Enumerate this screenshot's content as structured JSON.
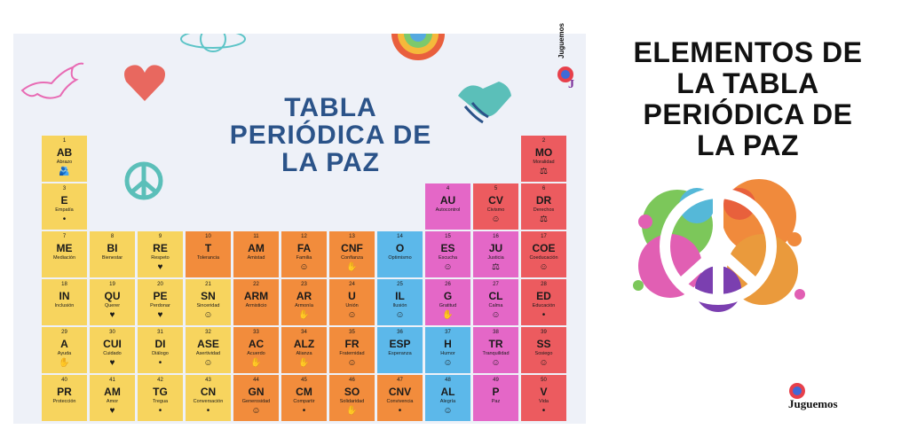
{
  "main_title": [
    "TABLA",
    "PERIÓDICA DE",
    "LA PAZ"
  ],
  "side_title": [
    "ELEMENTOS DE",
    "LA TABLA",
    "PERIÓDICA DE",
    "LA PAZ"
  ],
  "brand": "Juguemos",
  "colors": {
    "yellow": "#f7d45e",
    "orange": "#f28c3c",
    "blue": "#5cb8ea",
    "pink": "#e467c7",
    "red": "#ec5b5f",
    "title_blue": "#2b5389"
  },
  "elements": [
    {
      "num": "1",
      "sym": "AB",
      "name": "Abrazo",
      "color": "yellow",
      "icon": "hug-icon",
      "glyph": "🫂",
      "col": 0,
      "row": 0
    },
    {
      "num": "2",
      "sym": "MO",
      "name": "Moralidad",
      "color": "red",
      "icon": "scales-icon",
      "glyph": "⚖",
      "col": 10,
      "row": 0
    },
    {
      "num": "3",
      "sym": "E",
      "name": "Empatía",
      "color": "yellow",
      "icon": "hands-icon",
      "glyph": "",
      "col": 0,
      "row": 1
    },
    {
      "num": "4",
      "sym": "AU",
      "name": "Autocontrol",
      "color": "pink",
      "icon": "none",
      "glyph": "",
      "col": 8,
      "row": 1
    },
    {
      "num": "5",
      "sym": "CV",
      "name": "Civismo",
      "color": "red",
      "icon": "people-icon",
      "glyph": "☺",
      "col": 9,
      "row": 1
    },
    {
      "num": "6",
      "sym": "DR",
      "name": "Derechos",
      "color": "red",
      "icon": "scales-icon",
      "glyph": "⚖",
      "col": 10,
      "row": 1
    },
    {
      "num": "7",
      "sym": "ME",
      "name": "Mediación",
      "color": "yellow",
      "icon": "none",
      "glyph": "",
      "col": 0,
      "row": 2
    },
    {
      "num": "8",
      "sym": "BI",
      "name": "Bienestar",
      "color": "yellow",
      "icon": "none",
      "glyph": "",
      "col": 1,
      "row": 2
    },
    {
      "num": "9",
      "sym": "RE",
      "name": "Respeto",
      "color": "yellow",
      "icon": "heart-icon",
      "glyph": "♥",
      "col": 2,
      "row": 2
    },
    {
      "num": "10",
      "sym": "T",
      "name": "Tolerancia",
      "color": "orange",
      "icon": "none",
      "glyph": "",
      "col": 3,
      "row": 2
    },
    {
      "num": "11",
      "sym": "AM",
      "name": "Amistad",
      "color": "orange",
      "icon": "none",
      "glyph": "",
      "col": 4,
      "row": 2
    },
    {
      "num": "12",
      "sym": "FA",
      "name": "Familia",
      "color": "orange",
      "icon": "family-icon",
      "glyph": "☺",
      "col": 5,
      "row": 2
    },
    {
      "num": "13",
      "sym": "CNF",
      "name": "Confianza",
      "color": "orange",
      "icon": "handshake-icon",
      "glyph": "✋",
      "col": 6,
      "row": 2
    },
    {
      "num": "14",
      "sym": "O",
      "name": "Optimismo",
      "color": "blue",
      "icon": "none",
      "glyph": "",
      "col": 7,
      "row": 2
    },
    {
      "num": "15",
      "sym": "ES",
      "name": "Escucha",
      "color": "pink",
      "icon": "ear-icon",
      "glyph": "☺",
      "col": 8,
      "row": 2
    },
    {
      "num": "16",
      "sym": "JU",
      "name": "Justicia",
      "color": "pink",
      "icon": "scales-icon",
      "glyph": "⚖",
      "col": 9,
      "row": 2
    },
    {
      "num": "17",
      "sym": "COE",
      "name": "Coeducación",
      "color": "red",
      "icon": "people-icon",
      "glyph": "☺",
      "col": 10,
      "row": 2
    },
    {
      "num": "18",
      "sym": "IN",
      "name": "Inclusión",
      "color": "yellow",
      "icon": "none",
      "glyph": "",
      "col": 0,
      "row": 3
    },
    {
      "num": "19",
      "sym": "QU",
      "name": "Querer",
      "color": "yellow",
      "icon": "hearts-icon",
      "glyph": "♥",
      "col": 1,
      "row": 3
    },
    {
      "num": "20",
      "sym": "PE",
      "name": "Perdonar",
      "color": "yellow",
      "icon": "heart-icon",
      "glyph": "♥",
      "col": 2,
      "row": 3
    },
    {
      "num": "21",
      "sym": "SN",
      "name": "Sinceridad",
      "color": "yellow",
      "icon": "people-icon",
      "glyph": "☺",
      "col": 3,
      "row": 3
    },
    {
      "num": "22",
      "sym": "ARM",
      "name": "Armisticio",
      "color": "orange",
      "icon": "none",
      "glyph": "",
      "col": 4,
      "row": 3
    },
    {
      "num": "23",
      "sym": "AR",
      "name": "Armonía",
      "color": "orange",
      "icon": "handshake-icon",
      "glyph": "✋",
      "col": 5,
      "row": 3
    },
    {
      "num": "24",
      "sym": "U",
      "name": "Unión",
      "color": "orange",
      "icon": "people-icon",
      "glyph": "☺",
      "col": 6,
      "row": 3
    },
    {
      "num": "25",
      "sym": "IL",
      "name": "Ilusión",
      "color": "blue",
      "icon": "smile-icon",
      "glyph": "☺",
      "col": 7,
      "row": 3
    },
    {
      "num": "26",
      "sym": "G",
      "name": "Gratitud",
      "color": "pink",
      "icon": "hand-icon",
      "glyph": "✋",
      "col": 8,
      "row": 3
    },
    {
      "num": "27",
      "sym": "CL",
      "name": "Calma",
      "color": "pink",
      "icon": "meditate-icon",
      "glyph": "☺",
      "col": 9,
      "row": 3
    },
    {
      "num": "28",
      "sym": "ED",
      "name": "Educación",
      "color": "red",
      "icon": "book-icon",
      "glyph": "",
      "col": 10,
      "row": 3
    },
    {
      "num": "29",
      "sym": "A",
      "name": "Ayuda",
      "color": "yellow",
      "icon": "hand-icon",
      "glyph": "✋",
      "col": 0,
      "row": 4
    },
    {
      "num": "30",
      "sym": "CUI",
      "name": "Cuidado",
      "color": "yellow",
      "icon": "care-icon",
      "glyph": "♥",
      "col": 1,
      "row": 4
    },
    {
      "num": "31",
      "sym": "DI",
      "name": "Diálogo",
      "color": "yellow",
      "icon": "chat-icon",
      "glyph": "",
      "col": 2,
      "row": 4
    },
    {
      "num": "32",
      "sym": "ASE",
      "name": "Asertividad",
      "color": "yellow",
      "icon": "people-icon",
      "glyph": "☺",
      "col": 3,
      "row": 4
    },
    {
      "num": "33",
      "sym": "AC",
      "name": "Acuerdo",
      "color": "orange",
      "icon": "handshake-icon",
      "glyph": "✋",
      "col": 4,
      "row": 4
    },
    {
      "num": "34",
      "sym": "ALZ",
      "name": "Alianza",
      "color": "orange",
      "icon": "handshake-icon",
      "glyph": "✋",
      "col": 5,
      "row": 4
    },
    {
      "num": "35",
      "sym": "FR",
      "name": "Fraternidad",
      "color": "orange",
      "icon": "people-icon",
      "glyph": "☺",
      "col": 6,
      "row": 4
    },
    {
      "num": "36",
      "sym": "ESP",
      "name": "Esperanza",
      "color": "blue",
      "icon": "none",
      "glyph": "",
      "col": 7,
      "row": 4
    },
    {
      "num": "37",
      "sym": "H",
      "name": "Humor",
      "color": "blue",
      "icon": "smile-icon",
      "glyph": "☺",
      "col": 8,
      "row": 4
    },
    {
      "num": "38",
      "sym": "TR",
      "name": "Tranquilidad",
      "color": "pink",
      "icon": "meditate-icon",
      "glyph": "☺",
      "col": 9,
      "row": 4
    },
    {
      "num": "39",
      "sym": "SS",
      "name": "Sosiego",
      "color": "red",
      "icon": "meditate-icon",
      "glyph": "☺",
      "col": 10,
      "row": 4
    },
    {
      "num": "40",
      "sym": "PR",
      "name": "Protección",
      "color": "yellow",
      "icon": "none",
      "glyph": "",
      "col": 0,
      "row": 5
    },
    {
      "num": "41",
      "sym": "AM",
      "name": "Amor",
      "color": "yellow",
      "icon": "hearts-icon",
      "glyph": "♥",
      "col": 1,
      "row": 5
    },
    {
      "num": "42",
      "sym": "TG",
      "name": "Tregua",
      "color": "yellow",
      "icon": "chat-icon",
      "glyph": "",
      "col": 2,
      "row": 5
    },
    {
      "num": "43",
      "sym": "CN",
      "name": "Conversación",
      "color": "yellow",
      "icon": "chat-icon",
      "glyph": "",
      "col": 3,
      "row": 5
    },
    {
      "num": "44",
      "sym": "GN",
      "name": "Generosidad",
      "color": "orange",
      "icon": "people-icon",
      "glyph": "☺",
      "col": 4,
      "row": 5
    },
    {
      "num": "45",
      "sym": "CM",
      "name": "Compartir",
      "color": "orange",
      "icon": "share-icon",
      "glyph": "",
      "col": 5,
      "row": 5
    },
    {
      "num": "46",
      "sym": "SO",
      "name": "Solidaridad",
      "color": "orange",
      "icon": "handshake-icon",
      "glyph": "✋",
      "col": 6,
      "row": 5
    },
    {
      "num": "47",
      "sym": "CNV",
      "name": "Convivencia",
      "color": "orange",
      "icon": "house-icon",
      "glyph": "",
      "col": 7,
      "row": 5
    },
    {
      "num": "48",
      "sym": "AL",
      "name": "Alegría",
      "color": "blue",
      "icon": "smile-icon",
      "glyph": "☺",
      "col": 8,
      "row": 5
    },
    {
      "num": "49",
      "sym": "P",
      "name": "Paz",
      "color": "pink",
      "icon": "none",
      "glyph": "",
      "col": 9,
      "row": 5
    },
    {
      "num": "50",
      "sym": "V",
      "name": "Vida",
      "color": "red",
      "icon": "hands-icon",
      "glyph": "",
      "col": 10,
      "row": 5
    }
  ]
}
